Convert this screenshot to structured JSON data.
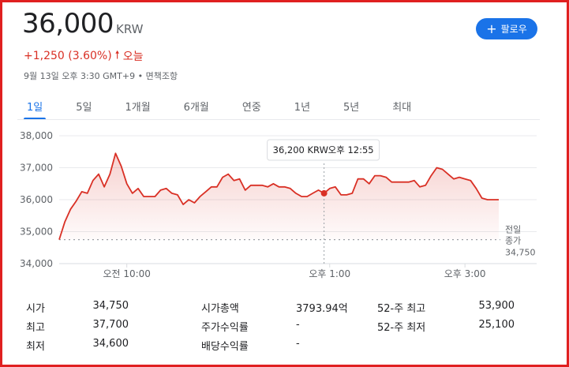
{
  "quote": {
    "price": "36,000",
    "currency": "KRW",
    "change": "+1,250 (3.60%)",
    "direction_icon": "arrow-up-icon",
    "period": "오늘",
    "meta": "9월 13일 오후 3:30 GMT+9 • 면책조항",
    "change_color": "#d93025"
  },
  "follow_button": {
    "label": "팔로우",
    "icon": "plus-icon",
    "color": "#1a73e8"
  },
  "tabs": [
    {
      "label": "1일",
      "active": true
    },
    {
      "label": "5일",
      "active": false
    },
    {
      "label": "1개월",
      "active": false
    },
    {
      "label": "6개월",
      "active": false
    },
    {
      "label": "연중",
      "active": false
    },
    {
      "label": "1년",
      "active": false
    },
    {
      "label": "5년",
      "active": false
    },
    {
      "label": "최대",
      "active": false
    }
  ],
  "chart_data": {
    "type": "line",
    "y_ticks": [
      "38,000",
      "37,000",
      "36,000",
      "35,000",
      "34,000"
    ],
    "ylim": [
      34000,
      38000
    ],
    "x_ticks": [
      "오전 10:00",
      "오후 1:00",
      "오후 3:00"
    ],
    "previous_close": {
      "label_line1": "전일",
      "label_line2": "종가",
      "value": "34,750",
      "level": 34750
    },
    "tooltip": {
      "price": "36,200 KRW",
      "time": "오후 12:55"
    },
    "line_color": "#d93025",
    "grid": true,
    "series": [
      {
        "x": [
          "09:00",
          "09:05",
          "09:10",
          "09:15",
          "09:20",
          "09:25",
          "09:30",
          "09:35",
          "09:40",
          "09:45",
          "09:50",
          "09:55",
          "10:00",
          "10:05",
          "10:10",
          "10:15",
          "10:20",
          "10:25",
          "10:30",
          "10:35",
          "10:40",
          "10:45",
          "10:50",
          "10:55",
          "11:00",
          "11:05",
          "11:10",
          "11:15",
          "11:20",
          "11:25",
          "11:30",
          "11:35",
          "11:40",
          "11:45",
          "11:50",
          "11:55",
          "12:00",
          "12:05",
          "12:10",
          "12:15",
          "12:20",
          "12:25",
          "12:30",
          "12:35",
          "12:40",
          "12:45",
          "12:50",
          "12:55",
          "13:00",
          "13:05",
          "13:10",
          "13:15",
          "13:20",
          "13:25",
          "13:30",
          "13:35",
          "13:40",
          "13:45",
          "13:50",
          "13:55",
          "14:00",
          "14:05",
          "14:10",
          "14:15",
          "14:20",
          "14:25",
          "14:30",
          "14:35",
          "14:40",
          "14:45",
          "14:50",
          "14:55",
          "15:00",
          "15:05",
          "15:10",
          "15:15",
          "15:20",
          "15:25",
          "15:30"
        ],
        "values": [
          34750,
          35300,
          35700,
          35950,
          36250,
          36200,
          36600,
          36800,
          36400,
          36800,
          37450,
          37050,
          36500,
          36200,
          36350,
          36100,
          36100,
          36100,
          36300,
          36350,
          36200,
          36150,
          35850,
          36000,
          35900,
          36100,
          36250,
          36400,
          36400,
          36700,
          36800,
          36600,
          36650,
          36300,
          36450,
          36450,
          36450,
          36400,
          36500,
          36400,
          36400,
          36350,
          36200,
          36100,
          36100,
          36200,
          36300,
          36200,
          36350,
          36400,
          36150,
          36150,
          36200,
          36650,
          36650,
          36500,
          36750,
          36750,
          36700,
          36550,
          36550,
          36550,
          36550,
          36600,
          36400,
          36450,
          36750,
          37000,
          36950,
          36800,
          36650,
          36700,
          36650,
          36600,
          36350,
          36050,
          36000,
          36000,
          36000
        ]
      }
    ]
  },
  "stats": [
    {
      "label": "시가",
      "value": "34,750"
    },
    {
      "label": "최고",
      "value": "37,700"
    },
    {
      "label": "최저",
      "value": "34,600"
    },
    {
      "label": "시가총액",
      "value": "3793.94억"
    },
    {
      "label": "주가수익률",
      "value": "-"
    },
    {
      "label": "배당수익률",
      "value": "-"
    },
    {
      "label": "52-주 최고",
      "value": "53,900"
    },
    {
      "label": "52-주 최저",
      "value": "25,100"
    }
  ]
}
